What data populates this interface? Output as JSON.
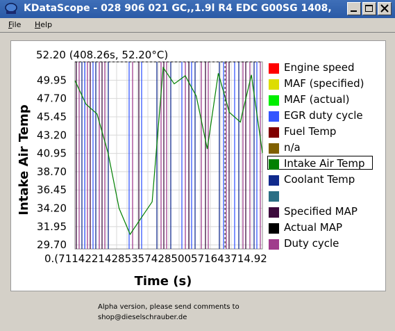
{
  "window": {
    "title": "KDataScope - 028 906 021 GC,,1.9l R4 EDC  G00SG  1408,"
  },
  "menu": {
    "items": [
      {
        "underline": "F",
        "rest": "ile"
      },
      {
        "underline": "H",
        "rest": "elp"
      }
    ]
  },
  "chart": {
    "cursor_readout": "52.20 (408.26s, 52.20°C)",
    "ylabel": "Intake Air Temp",
    "xlabel": "Time (s)",
    "yticks": [
      "49.95",
      "47.70",
      "45.45",
      "43.20",
      "40.95",
      "38.70",
      "36.45",
      "34.20",
      "31.95",
      "29.70"
    ],
    "xtick_text": "0.(71142214285357428500571643714.92"
  },
  "chart_data": {
    "type": "line",
    "title": "",
    "xlabel": "Time (s)",
    "ylabel": "Intake Air Temp",
    "ylim": [
      29.2,
      52.2
    ],
    "grid": true,
    "cursor": {
      "x": 408.26,
      "y": 52.2
    },
    "x": [
      0,
      30,
      60,
      90,
      120,
      150,
      180,
      210,
      240,
      270,
      300,
      330,
      360,
      390,
      420,
      450,
      480,
      510
    ],
    "series": [
      {
        "name": "Intake Air Temp",
        "values": [
          49.9,
          47.0,
          45.8,
          41.0,
          34.2,
          31.0,
          33.0,
          35.0,
          51.5,
          49.5,
          50.5,
          48.0,
          41.5,
          50.8,
          46.0,
          44.8,
          50.6,
          41.0
        ]
      }
    ]
  },
  "legend": {
    "selected_index": 6,
    "items": [
      {
        "label": "Engine speed",
        "color": "#ff0000"
      },
      {
        "label": "MAF (specified)",
        "color": "#dddd00"
      },
      {
        "label": "MAF (actual)",
        "color": "#00ee00"
      },
      {
        "label": "EGR duty cycle",
        "color": "#3355ff"
      },
      {
        "label": "Fuel Temp",
        "color": "#800000"
      },
      {
        "label": "n/a",
        "color": "#806000"
      },
      {
        "label": "Intake Air Temp",
        "color": "#008000"
      },
      {
        "label": "Coolant Temp",
        "color": "#102a8c"
      },
      {
        "label": "",
        "color": "#2a6e84"
      },
      {
        "label": "Specified MAP",
        "color": "#3c0a3c"
      },
      {
        "label": "Actual MAP",
        "color": "#000000"
      },
      {
        "label": "Duty cycle",
        "color": "#a03c8c"
      }
    ]
  },
  "footer": {
    "line1": "Alpha version, please send comments to",
    "line2": "shop@dieselschrauber.de"
  }
}
